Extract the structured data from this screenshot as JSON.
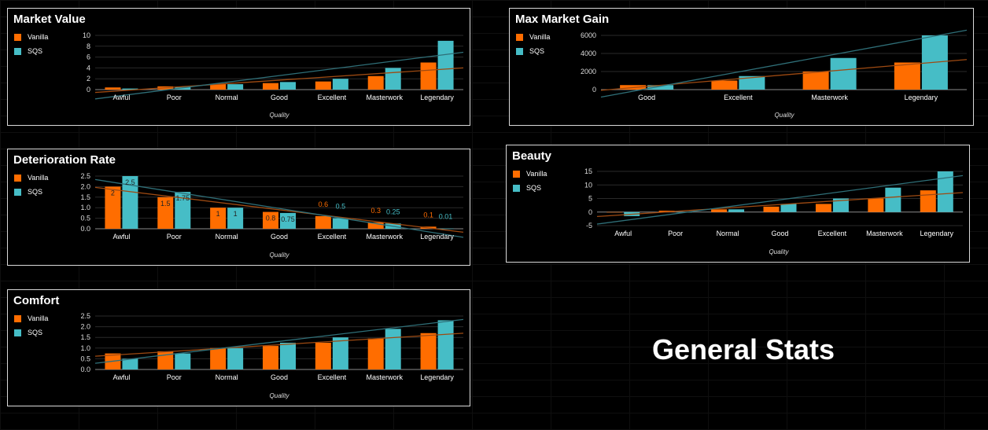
{
  "page_title": "General Stats",
  "colors": {
    "vanilla": "#ff6d00",
    "sqs": "#46bdc6"
  },
  "chart_data": [
    {
      "id": "market-value",
      "type": "bar",
      "title": "Market Value",
      "xlabel": "Quality",
      "categories": [
        "Awful",
        "Poor",
        "Normal",
        "Good",
        "Excellent",
        "Masterwork",
        "Legendary"
      ],
      "series": [
        {
          "name": "Vanilla",
          "values": [
            0.4,
            0.6,
            1.0,
            1.2,
            1.5,
            2.5,
            5.0
          ]
        },
        {
          "name": "SQS",
          "values": [
            0.2,
            0.5,
            1.0,
            1.4,
            2.0,
            4.0,
            9.0
          ]
        }
      ],
      "ylim": [
        0,
        10
      ],
      "yticks": [
        0,
        2,
        4,
        6,
        8,
        10
      ],
      "trendline": true,
      "data_labels": false
    },
    {
      "id": "max-market-gain",
      "type": "bar",
      "title": "Max Market Gain",
      "xlabel": "Quality",
      "categories": [
        "Good",
        "Excellent",
        "Masterwork",
        "Legendary"
      ],
      "series": [
        {
          "name": "Vanilla",
          "values": [
            500,
            1000,
            2000,
            3000
          ]
        },
        {
          "name": "SQS",
          "values": [
            500,
            1500,
            3500,
            6000
          ]
        }
      ],
      "ylim": [
        0,
        6000
      ],
      "yticks": [
        0,
        2000,
        4000,
        6000
      ],
      "trendline": true,
      "data_labels": false
    },
    {
      "id": "deterioration-rate",
      "type": "bar",
      "title": "Deterioration Rate",
      "xlabel": "Quality",
      "categories": [
        "Awful",
        "Poor",
        "Normal",
        "Good",
        "Excellent",
        "Masterwork",
        "Legendary"
      ],
      "series": [
        {
          "name": "Vanilla",
          "values": [
            2,
            1.5,
            1,
            0.8,
            0.6,
            0.3,
            0.1
          ]
        },
        {
          "name": "SQS",
          "values": [
            2.5,
            1.75,
            1,
            0.75,
            0.5,
            0.25,
            0.01
          ]
        }
      ],
      "ylim": [
        0,
        2.5
      ],
      "yticks": [
        0.0,
        0.5,
        1.0,
        1.5,
        2.0,
        2.5
      ],
      "trendline": true,
      "data_labels": true
    },
    {
      "id": "beauty",
      "type": "bar",
      "title": "Beauty",
      "xlabel": "Quality",
      "categories": [
        "Awful",
        "Poor",
        "Normal",
        "Good",
        "Excellent",
        "Masterwork",
        "Legendary"
      ],
      "series": [
        {
          "name": "Vanilla",
          "values": [
            -0.1,
            0.5,
            1,
            2,
            3,
            5,
            8
          ]
        },
        {
          "name": "SQS",
          "values": [
            -1.5,
            0,
            1,
            3,
            5,
            9,
            15
          ]
        }
      ],
      "ylim": [
        -5,
        15
      ],
      "yticks": [
        -5,
        0,
        5,
        10,
        15
      ],
      "trendline": true,
      "data_labels": false
    },
    {
      "id": "comfort",
      "type": "bar",
      "title": "Comfort",
      "xlabel": "Quality",
      "categories": [
        "Awful",
        "Poor",
        "Normal",
        "Good",
        "Excellent",
        "Masterwork",
        "Legendary"
      ],
      "series": [
        {
          "name": "Vanilla",
          "values": [
            0.75,
            0.85,
            1.0,
            1.1,
            1.25,
            1.45,
            1.7
          ]
        },
        {
          "name": "SQS",
          "values": [
            0.5,
            0.75,
            1.0,
            1.25,
            1.5,
            1.9,
            2.3
          ]
        }
      ],
      "ylim": [
        0,
        2.5
      ],
      "yticks": [
        0.0,
        0.5,
        1.0,
        1.5,
        2.0,
        2.5
      ],
      "trendline": true,
      "data_labels": false
    }
  ]
}
